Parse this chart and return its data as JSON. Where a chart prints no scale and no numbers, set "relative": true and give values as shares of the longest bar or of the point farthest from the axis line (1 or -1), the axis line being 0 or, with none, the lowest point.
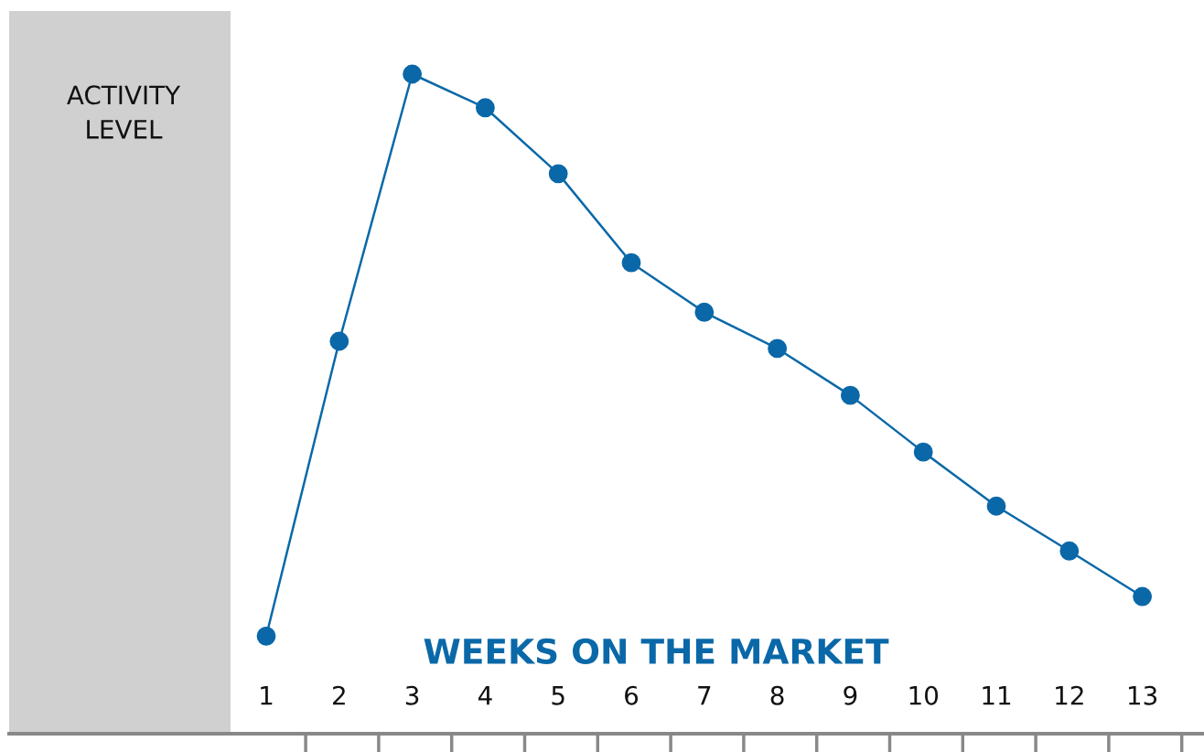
{
  "chart_data": {
    "type": "line",
    "relative": true,
    "xlabel": "WEEKS ON THE MARKET",
    "ylabel": "ACTIVITY\nLEVEL",
    "categories": [
      "1",
      "2",
      "3",
      "4",
      "5",
      "6",
      "7",
      "8",
      "9",
      "10",
      "11",
      "12",
      "13"
    ],
    "series": [
      {
        "color": "#0a68a8",
        "values": [
          0.148,
          0.595,
          1,
          0.949,
          0.849,
          0.714,
          0.639,
          0.584,
          0.513,
          0.427,
          0.345,
          0.277,
          0.208
        ]
      }
    ],
    "marker": "circle",
    "line_style": "solid",
    "grid": false,
    "legend": false
  }
}
